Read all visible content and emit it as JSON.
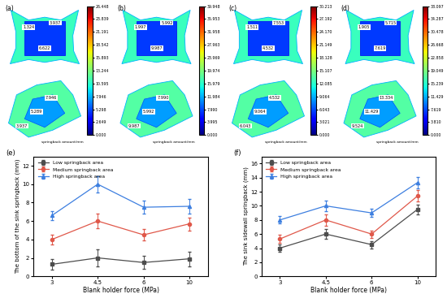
{
  "chart_data": [
    {
      "type": "contour_map",
      "title": "(a)",
      "colorbar_label": "springback amount/mm",
      "colorbar_range": [
        0,
        26.448
      ],
      "colorbar_ticks": [
        {
          "value": 0,
          "label": "0.000"
        },
        2.649,
        5.298,
        7.946,
        10.595,
        13.244,
        15.893,
        18.542,
        21.191,
        23.839,
        26.448
      ],
      "top_view_labels": [
        "1.324",
        "3.937",
        "6.622"
      ],
      "iso_view_labels": [
        "7.946",
        "5.289",
        "3.937"
      ]
    },
    {
      "type": "contour_map",
      "title": "(b)",
      "colorbar_label": "springback amount/mm",
      "colorbar_range": [
        0,
        39.948
      ],
      "colorbar_ticks": [
        {
          "value": 0,
          "label": "0.000"
        },
        3.995,
        {
          "value": 7.99,
          "label": "7.990"
        },
        11.984,
        15.979,
        19.974,
        23.969,
        27.963,
        31.958,
        35.953,
        39.948
      ],
      "top_view_labels": [
        "1.997",
        "5.992",
        "9.987"
      ],
      "iso_view_labels": [
        "7.990",
        "5.992",
        "9.987"
      ]
    },
    {
      "type": "contour_map",
      "title": "(c)",
      "colorbar_label": "springback amount/mm",
      "colorbar_range": [
        0,
        30.213
      ],
      "colorbar_ticks": [
        {
          "value": 0,
          "label": "0.000"
        },
        3.021,
        6.043,
        9.064,
        12.085,
        15.107,
        18.128,
        21.149,
        {
          "value": 24.17,
          "label": "24.170"
        },
        27.192,
        30.213
      ],
      "top_view_labels": [
        "1.511",
        "7.553",
        "4.532"
      ],
      "iso_view_labels": [
        "4.532",
        "9.064",
        "6.043"
      ]
    },
    {
      "type": "contour_map",
      "title": "(d)",
      "colorbar_label": "springback amount/mm",
      "colorbar_range": [
        0,
        38.097
      ],
      "colorbar_ticks": [
        {
          "value": 0,
          "label": "0.000"
        },
        {
          "value": 3.81,
          "label": "3.810"
        },
        7.619,
        11.429,
        15.239,
        19.049,
        22.858,
        26.668,
        30.478,
        34.287,
        38.097
      ],
      "top_view_labels": [
        "1.905",
        "5.715",
        "7.619"
      ],
      "iso_view_labels": [
        "13.334",
        "11.429",
        "9.524"
      ]
    },
    {
      "type": "line",
      "title": "(e)",
      "x_label": "Blank holder force (MPa)",
      "y_label": "The bottom of the sink springback (mm)",
      "categories": [
        "3",
        "4.5",
        "6",
        "10"
      ],
      "ylim": [
        0,
        13
      ],
      "yticks": [
        0,
        2,
        4,
        6,
        8,
        10,
        12
      ],
      "legend": "upper left",
      "series": [
        {
          "name": "Low springback area",
          "color": "#4d4d4d",
          "marker": "square",
          "values": [
            1.3,
            2.0,
            1.5,
            1.9
          ],
          "errors": [
            0.6,
            0.9,
            0.7,
            0.8
          ]
        },
        {
          "name": "Medium springback area",
          "color": "#e0584a",
          "marker": "circle",
          "values": [
            4.0,
            6.0,
            4.5,
            5.7
          ],
          "errors": [
            0.5,
            0.8,
            0.6,
            0.7
          ]
        },
        {
          "name": "High springback area",
          "color": "#3d7fe0",
          "marker": "triangle",
          "values": [
            6.6,
            10.0,
            7.5,
            7.6
          ],
          "errors": [
            0.5,
            0.9,
            0.7,
            0.8
          ]
        }
      ]
    },
    {
      "type": "line",
      "title": "(f)",
      "x_label": "Blank holder force (MPa)",
      "y_label": "The sink sidewall springback (mm)",
      "categories": [
        "3",
        "4.5",
        "6",
        "10"
      ],
      "ylim": [
        0,
        17
      ],
      "yticks": [
        0,
        2,
        4,
        6,
        8,
        10,
        12,
        14,
        16
      ],
      "legend": "upper left",
      "series": [
        {
          "name": "Low springback area",
          "color": "#4d4d4d",
          "marker": "square",
          "values": [
            4.0,
            6.0,
            4.5,
            9.5
          ],
          "errors": [
            0.5,
            0.7,
            0.5,
            0.7
          ]
        },
        {
          "name": "Medium springback area",
          "color": "#e0584a",
          "marker": "circle",
          "values": [
            5.3,
            8.0,
            6.0,
            11.4
          ],
          "errors": [
            0.6,
            0.8,
            0.5,
            0.8
          ]
        },
        {
          "name": "High springback area",
          "color": "#3d7fe0",
          "marker": "triangle",
          "values": [
            8.0,
            10.0,
            9.0,
            13.3
          ],
          "errors": [
            0.5,
            0.8,
            0.6,
            0.8
          ]
        }
      ]
    }
  ]
}
